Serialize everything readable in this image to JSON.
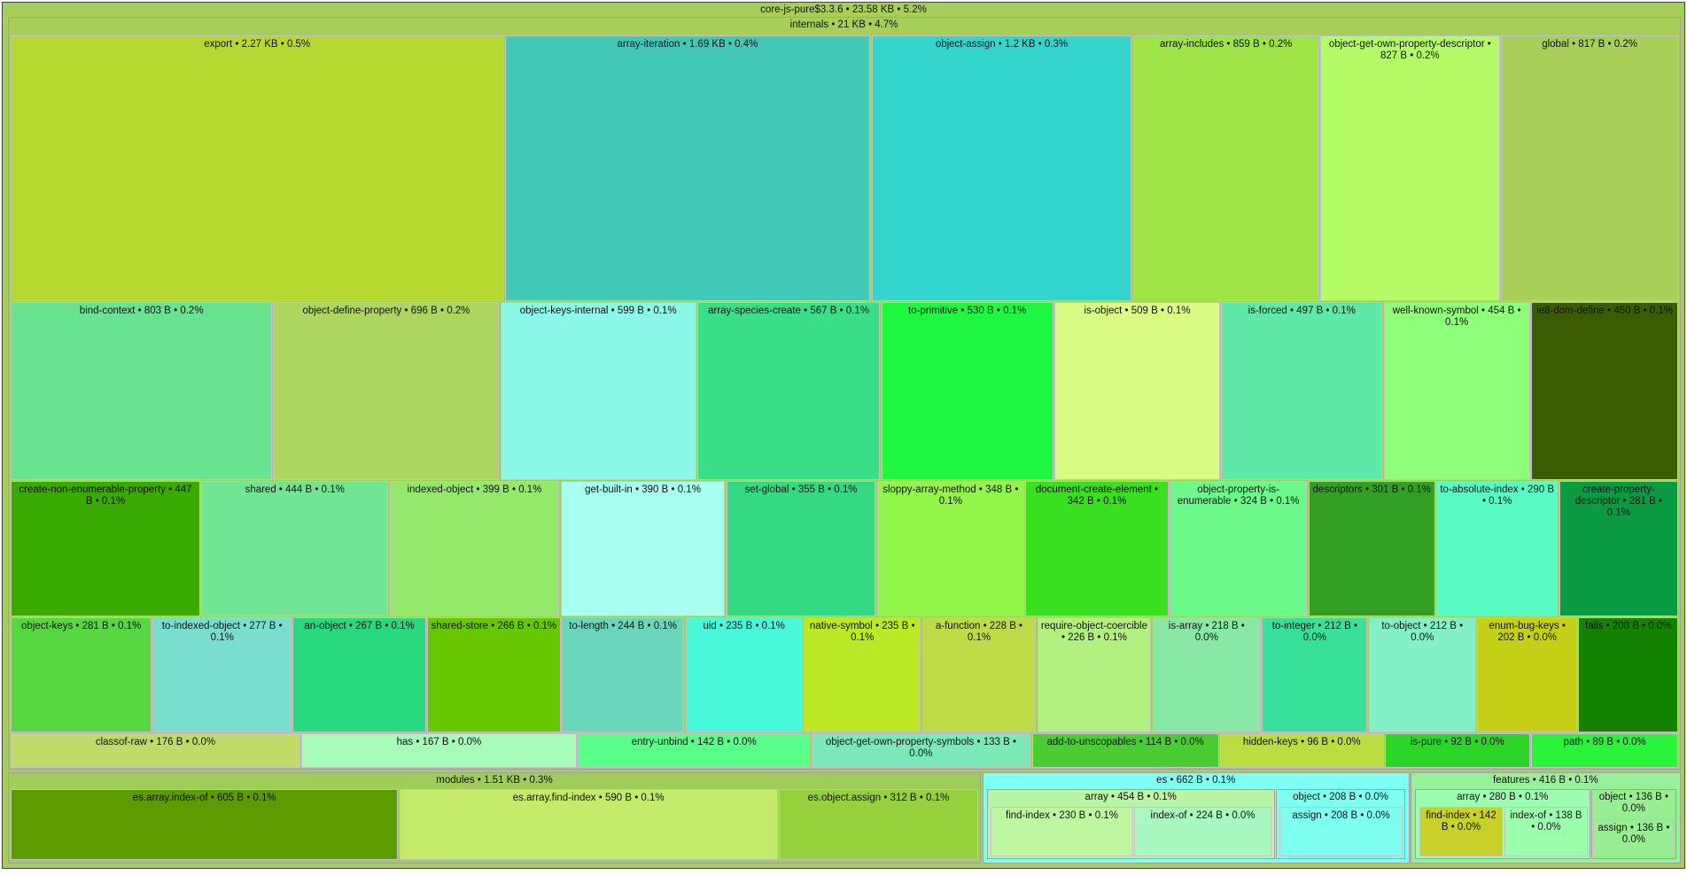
{
  "chart_data": {
    "type": "treemap",
    "root": {
      "label": "core-js-pure$3.3.6 • 23.58 KB • 5.2%",
      "color": "#a6cf5a",
      "children": [
        {
          "label": "internals • 21 KB • 4.7%",
          "color": "#a6cf5a",
          "children": [
            {
              "label": "export • 2.27 KB • 0.5%",
              "color": "#b5d930"
            },
            {
              "label": "array-iteration • 1.69 KB • 0.4%",
              "color": "#42c9b6"
            },
            {
              "label": "object-assign • 1.2 KB • 0.3%",
              "color": "#34d6cc"
            },
            {
              "label": "array-includes • 859 B • 0.2%",
              "color": "#9de444"
            },
            {
              "label": "object-get-own-property-descriptor • 827 B • 0.2%",
              "color": "#b5fb68"
            },
            {
              "label": "global • 817 B • 0.2%",
              "color": "#a8cf5a"
            },
            {
              "label": "bind-context • 803 B • 0.2%",
              "color": "#68e38f"
            },
            {
              "label": "object-define-property • 696 B • 0.2%",
              "color": "#acd660"
            },
            {
              "label": "object-keys-internal • 599 B • 0.1%",
              "color": "#8cf8e8"
            },
            {
              "label": "array-species-create • 567 B • 0.1%",
              "color": "#38df88"
            },
            {
              "label": "to-primitive • 530 B • 0.1%",
              "color": "#1ff843"
            },
            {
              "label": "is-object • 509 B • 0.1%",
              "color": "#dafc84"
            },
            {
              "label": "is-forced • 497 B • 0.1%",
              "color": "#60e8a8"
            },
            {
              "label": "well-known-symbol • 454 B • 0.1%",
              "color": "#8eff78"
            },
            {
              "label": "ie8-dom-define • 450 B • 0.1%",
              "color": "#3b5c00"
            },
            {
              "label": "create-non-enumerable-property • 447 B • 0.1%",
              "color": "#3aaa00"
            },
            {
              "label": "shared • 444 B • 0.1%",
              "color": "#72e594"
            },
            {
              "label": "indexed-object • 399 B • 0.1%",
              "color": "#94e86a"
            },
            {
              "label": "get-built-in • 390 B • 0.1%",
              "color": "#a8fff0"
            },
            {
              "label": "set-global • 355 B • 0.1%",
              "color": "#34d983"
            },
            {
              "label": "sloppy-array-method • 348 B • 0.1%",
              "color": "#92f54a"
            },
            {
              "label": "document-create-element • 342 B • 0.1%",
              "color": "#38e020"
            },
            {
              "label": "object-property-is-enumerable • 324 B • 0.1%",
              "color": "#6cf98a"
            },
            {
              "label": "descriptors • 301 B • 0.1%",
              "color": "#33a025"
            },
            {
              "label": "to-absolute-index • 290 B • 0.1%",
              "color": "#58fbc4"
            },
            {
              "label": "create-property-descriptor • 281 B • 0.1%",
              "color": "#0a9a42"
            },
            {
              "label": "object-keys • 281 B • 0.1%",
              "color": "#58d840"
            },
            {
              "label": "to-indexed-object • 277 B • 0.1%",
              "color": "#78dfcc"
            },
            {
              "label": "an-object • 267 B • 0.1%",
              "color": "#2ad880"
            },
            {
              "label": "shared-store • 266 B • 0.1%",
              "color": "#68c800"
            },
            {
              "label": "to-length • 244 B • 0.1%",
              "color": "#6ad6bb"
            },
            {
              "label": "uid • 235 B • 0.1%",
              "color": "#48f8d8"
            },
            {
              "label": "native-symbol • 235 B • 0.1%",
              "color": "#bce826"
            },
            {
              "label": "a-function • 228 B • 0.1%",
              "color": "#bedc48"
            },
            {
              "label": "require-object-coercible • 226 B • 0.1%",
              "color": "#b2f080"
            },
            {
              "label": "is-array • 218 B • 0.0%",
              "color": "#8ae8a6"
            },
            {
              "label": "to-integer • 212 B • 0.0%",
              "color": "#38e09c"
            },
            {
              "label": "to-object • 212 B • 0.0%",
              "color": "#84f0c6"
            },
            {
              "label": "enum-bug-keys • 202 B • 0.0%",
              "color": "#c6d016"
            },
            {
              "label": "fails • 200 B • 0.0%",
              "color": "#128200"
            },
            {
              "label": "classof-raw • 176 B • 0.0%",
              "color": "#c0dc68"
            },
            {
              "label": "has • 167 B • 0.0%",
              "color": "#a6fcb8"
            },
            {
              "label": "entry-unbind • 142 B • 0.0%",
              "color": "#5aff8a"
            },
            {
              "label": "object-get-own-property-symbols • 133 B • 0.0%",
              "color": "#7ce8b8"
            },
            {
              "label": "add-to-unscopables • 114 B • 0.0%",
              "color": "#4ccc34"
            },
            {
              "label": "hidden-keys • 96 B • 0.0%",
              "color": "#bade40"
            },
            {
              "label": "is-pure • 92 B • 0.0%",
              "color": "#2cd628"
            },
            {
              "label": "path • 89 B • 0.0%",
              "color": "#2af43a"
            }
          ]
        },
        {
          "label": "modules • 1.51 KB • 0.3%",
          "color": "#a0cc5a",
          "children": [
            {
              "label": "es.array.index-of • 605 B • 0.1%",
              "color": "#5c9c00"
            },
            {
              "label": "es.array.find-index • 590 B • 0.1%",
              "color": "#c4ea6a"
            },
            {
              "label": "es.object.assign • 312 B • 0.1%",
              "color": "#96d03c"
            }
          ]
        },
        {
          "label": "es • 662 B • 0.1%",
          "color": "#80fff4",
          "children": [
            {
              "label": "array • 454 B • 0.1%",
              "color": "#b8f5a5",
              "children": [
                {
                  "label": "find-index • 230 B • 0.1%",
                  "color": "#bff7a0"
                },
                {
                  "label": "index-of • 224 B • 0.0%",
                  "color": "#a8f8c0"
                }
              ]
            },
            {
              "label": "object • 208 B • 0.0%",
              "color": "#7ffff0",
              "children": [
                {
                  "label": "assign • 208 B • 0.0%",
                  "color": "#7ffff0"
                }
              ]
            }
          ]
        },
        {
          "label": "features • 416 B • 0.1%",
          "color": "#98f098",
          "children": [
            {
              "label": "array • 280 B • 0.1%",
              "color": "#9cfcb0",
              "children": [
                {
                  "label": "find-index • 142 B • 0.0%",
                  "color": "#c8d02a"
                },
                {
                  "label": "index-of • 138 B • 0.0%",
                  "color": "#9cffae"
                }
              ]
            },
            {
              "label": "object • 136 B • 0.0%",
              "color": "#98ee90",
              "children": [
                {
                  "label": "assign • 136 B • 0.0%",
                  "color": "#98ee90"
                }
              ]
            }
          ]
        }
      ]
    }
  }
}
